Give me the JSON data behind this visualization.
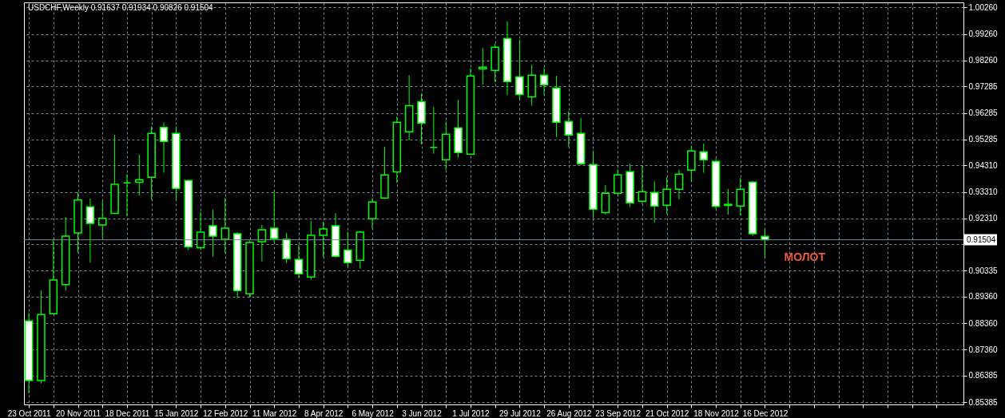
{
  "chart_data": {
    "type": "candlestick",
    "title": "USDCHF,Weekly 0.91637 0.91934 0.90826 0.91504",
    "x": [
      "2011-10-23",
      "2011-10-30",
      "2011-11-06",
      "2011-11-13",
      "2011-11-20",
      "2011-11-27",
      "2011-12-04",
      "2011-12-11",
      "2011-12-18",
      "2011-12-25",
      "2012-01-01",
      "2012-01-08",
      "2012-01-15",
      "2012-01-22",
      "2012-01-29",
      "2012-02-05",
      "2012-02-12",
      "2012-02-19",
      "2012-02-26",
      "2012-03-04",
      "2012-03-11",
      "2012-03-18",
      "2012-03-25",
      "2012-04-01",
      "2012-04-08",
      "2012-04-15",
      "2012-04-22",
      "2012-04-29",
      "2012-05-06",
      "2012-05-13",
      "2012-05-20",
      "2012-05-27",
      "2012-06-03",
      "2012-06-10",
      "2012-06-17",
      "2012-06-24",
      "2012-07-01",
      "2012-07-08",
      "2012-07-15",
      "2012-07-22",
      "2012-07-29",
      "2012-08-05",
      "2012-08-12",
      "2012-08-19",
      "2012-08-26",
      "2012-09-02",
      "2012-09-09",
      "2012-09-16",
      "2012-09-23",
      "2012-09-30",
      "2012-10-07",
      "2012-10-14",
      "2012-10-21",
      "2012-10-28",
      "2012-11-04",
      "2012-11-11",
      "2012-11-18",
      "2012-11-25",
      "2012-12-02",
      "2012-12-09",
      "2012-12-16"
    ],
    "ohlc": [
      [
        0.8845,
        0.8875,
        0.8572,
        0.862
      ],
      [
        0.862,
        0.896,
        0.8609,
        0.8869
      ],
      [
        0.8872,
        0.915,
        0.8869,
        0.8999
      ],
      [
        0.8982,
        0.9236,
        0.8958,
        0.9164
      ],
      [
        0.9176,
        0.933,
        0.9102,
        0.93
      ],
      [
        0.9275,
        0.9306,
        0.9064,
        0.9212
      ],
      [
        0.9206,
        0.9296,
        0.9158,
        0.9231
      ],
      [
        0.925,
        0.9546,
        0.9248,
        0.936
      ],
      [
        0.9365,
        0.9398,
        0.924,
        0.9365
      ],
      [
        0.9367,
        0.9471,
        0.9318,
        0.9377
      ],
      [
        0.9386,
        0.9578,
        0.9301,
        0.9551
      ],
      [
        0.9574,
        0.9593,
        0.9403,
        0.9521
      ],
      [
        0.9551,
        0.9578,
        0.9301,
        0.9344
      ],
      [
        0.9374,
        0.9377,
        0.9112,
        0.9124
      ],
      [
        0.9121,
        0.9255,
        0.9112,
        0.9179
      ],
      [
        0.9203,
        0.9264,
        0.9087,
        0.9164
      ],
      [
        0.9152,
        0.9308,
        0.91,
        0.9194
      ],
      [
        0.9173,
        0.9179,
        0.8929,
        0.8959
      ],
      [
        0.8947,
        0.9147,
        0.8935,
        0.914
      ],
      [
        0.9143,
        0.9207,
        0.9069,
        0.9188
      ],
      [
        0.9194,
        0.9335,
        0.914,
        0.9155
      ],
      [
        0.9152,
        0.9176,
        0.9063,
        0.9079
      ],
      [
        0.9076,
        0.9132,
        0.9007,
        0.9022
      ],
      [
        0.901,
        0.9222,
        0.9001,
        0.9167
      ],
      [
        0.9167,
        0.9218,
        0.9085,
        0.9191
      ],
      [
        0.9203,
        0.9251,
        0.9082,
        0.9088
      ],
      [
        0.9112,
        0.9179,
        0.905,
        0.9064
      ],
      [
        0.9073,
        0.9185,
        0.9042,
        0.9179
      ],
      [
        0.923,
        0.9308,
        0.9192,
        0.9293
      ],
      [
        0.9308,
        0.9501,
        0.9303,
        0.9395
      ],
      [
        0.9406,
        0.9615,
        0.9366,
        0.9593
      ],
      [
        0.9557,
        0.9771,
        0.9526,
        0.9656
      ],
      [
        0.9671,
        0.9701,
        0.951,
        0.959
      ],
      [
        0.9499,
        0.9651,
        0.9475,
        0.9499
      ],
      [
        0.9452,
        0.9595,
        0.9413,
        0.9548
      ],
      [
        0.9572,
        0.9678,
        0.946,
        0.9479
      ],
      [
        0.9473,
        0.9796,
        0.9473,
        0.9768
      ],
      [
        0.9795,
        0.9874,
        0.9736,
        0.9801
      ],
      [
        0.9789,
        0.9889,
        0.9745,
        0.9876
      ],
      [
        0.9909,
        0.9973,
        0.9695,
        0.9747
      ],
      [
        0.9765,
        0.9904,
        0.9681,
        0.9698
      ],
      [
        0.9689,
        0.9811,
        0.9655,
        0.9771
      ],
      [
        0.9771,
        0.9799,
        0.9695,
        0.9735
      ],
      [
        0.9722,
        0.9768,
        0.9538,
        0.9593
      ],
      [
        0.9596,
        0.9635,
        0.95,
        0.9545
      ],
      [
        0.9551,
        0.9609,
        0.9431,
        0.9437
      ],
      [
        0.9434,
        0.9487,
        0.9233,
        0.9266
      ],
      [
        0.9253,
        0.9357,
        0.9245,
        0.9326
      ],
      [
        0.9326,
        0.9416,
        0.9318,
        0.9395
      ],
      [
        0.9407,
        0.9437,
        0.9274,
        0.929
      ],
      [
        0.9296,
        0.9431,
        0.9285,
        0.9332
      ],
      [
        0.9329,
        0.9371,
        0.9215,
        0.9278
      ],
      [
        0.9281,
        0.9386,
        0.9248,
        0.9341
      ],
      [
        0.9341,
        0.9414,
        0.9303,
        0.9398
      ],
      [
        0.9413,
        0.9505,
        0.9373,
        0.9485
      ],
      [
        0.9482,
        0.9513,
        0.9403,
        0.9452
      ],
      [
        0.9446,
        0.9457,
        0.9266,
        0.9276
      ],
      [
        0.9284,
        0.9342,
        0.9245,
        0.928
      ],
      [
        0.9278,
        0.9384,
        0.9243,
        0.9341
      ],
      [
        0.9368,
        0.9371,
        0.9165,
        0.9173
      ],
      [
        0.91637,
        0.91934,
        0.90826,
        0.91504
      ]
    ],
    "color": "#00ff00",
    "colors": [
      "#ffffff",
      "#000000",
      "#000000",
      "#000000",
      "#000000",
      "#ffffff",
      "#000000",
      "#000000",
      "#00ff00",
      "#000000",
      "#000000",
      "#ffffff",
      "#ffffff",
      "#ffffff",
      "#000000",
      "#ffffff",
      "#000000",
      "#ffffff",
      "#000000",
      "#000000",
      "#ffffff",
      "#ffffff",
      "#ffffff",
      "#000000",
      "#000000",
      "#ffffff",
      "#ffffff",
      "#000000",
      "#000000",
      "#000000",
      "#000000",
      "#000000",
      "#ffffff",
      "#00ff00",
      "#000000",
      "#ffffff",
      "#000000",
      "#000000",
      "#000000",
      "#ffffff",
      "#ffffff",
      "#000000",
      "#ffffff",
      "#ffffff",
      "#ffffff",
      "#ffffff",
      "#ffffff",
      "#000000",
      "#000000",
      "#ffffff",
      "#000000",
      "#ffffff",
      "#000000",
      "#000000",
      "#000000",
      "#ffffff",
      "#ffffff",
      "#ffffff",
      "#000000",
      "#ffffff",
      "#ffffff"
    ],
    "xlim": [
      "2011-10-22T12:00",
      "2013-04-06"
    ],
    "xticks": [
      {
        "value": "2011-10-23",
        "label": "23 Oct 2011"
      },
      {
        "value": "2011-11-06",
        "label": null
      },
      {
        "value": "2011-11-20",
        "label": "20 Nov 2011"
      },
      {
        "value": "2011-12-04",
        "label": null
      },
      {
        "value": "2011-12-18",
        "label": "18 Dec 2011"
      },
      {
        "value": "2012-01-01",
        "label": null
      },
      {
        "value": "2012-01-15",
        "label": "15 Jan 2012"
      },
      {
        "value": "2012-01-29",
        "label": null
      },
      {
        "value": "2012-02-12",
        "label": "12 Feb 2012"
      },
      {
        "value": "2012-02-26",
        "label": null
      },
      {
        "value": "2012-03-11",
        "label": "11 Mar 2012"
      },
      {
        "value": "2012-03-25",
        "label": null
      },
      {
        "value": "2012-04-08",
        "label": "8 Apr 2012"
      },
      {
        "value": "2012-04-22",
        "label": null
      },
      {
        "value": "2012-05-06",
        "label": "6 May 2012"
      },
      {
        "value": "2012-05-20",
        "label": null
      },
      {
        "value": "2012-06-03",
        "label": "3 Jun 2012"
      },
      {
        "value": "2012-06-17",
        "label": null
      },
      {
        "value": "2012-07-01",
        "label": "1 Jul 2012"
      },
      {
        "value": "2012-07-15",
        "label": null
      },
      {
        "value": "2012-07-29",
        "label": "29 Jul 2012"
      },
      {
        "value": "2012-08-12",
        "label": null
      },
      {
        "value": "2012-08-26",
        "label": "26 Aug 2012"
      },
      {
        "value": "2012-09-09",
        "label": null
      },
      {
        "value": "2012-09-23",
        "label": "23 Sep 2012"
      },
      {
        "value": "2012-10-07",
        "label": null
      },
      {
        "value": "2012-10-21",
        "label": "21 Oct 2012"
      },
      {
        "value": "2012-11-04",
        "label": null
      },
      {
        "value": "2012-11-18",
        "label": "18 Nov 2012"
      },
      {
        "value": "2012-12-02",
        "label": null
      },
      {
        "value": "2012-12-16",
        "label": "16 Dec 2012"
      },
      {
        "value": "2012-12-30",
        "label": null
      },
      {
        "value": "2013-01-13",
        "label": null
      },
      {
        "value": "2013-01-27",
        "label": null
      },
      {
        "value": "2013-02-10",
        "label": null
      },
      {
        "value": "2013-02-24",
        "label": null
      },
      {
        "value": "2013-03-10",
        "label": null
      },
      {
        "value": "2013-03-24",
        "label": null
      }
    ],
    "ylim": [
      0.853,
      1.0045
    ],
    "yticks": [
      {
        "value": 1.0026,
        "label": "1.00260"
      },
      {
        "value": 0.9926,
        "label": "0.99260"
      },
      {
        "value": 0.9826,
        "label": "0.98260"
      },
      0.97285,
      0.96285,
      0.95285,
      {
        "value": 0.9431,
        "label": "0.94310"
      },
      {
        "value": 0.9331,
        "label": "0.93310"
      },
      {
        "value": 0.9231,
        "label": "0.92310"
      },
      {
        "value": 0.91335,
        "label": null
      },
      0.90335,
      {
        "value": 0.8936,
        "label": "0.89360"
      },
      {
        "value": 0.8836,
        "label": "0.88360"
      },
      {
        "value": 0.8736,
        "label": "0.87360"
      },
      0.86385,
      0.85385
    ],
    "grid": true,
    "ref_lines": [
      {
        "axis": "y",
        "value": 0.91504,
        "label": "0.91504",
        "color": "#778899"
      }
    ],
    "annotations": [
      {
        "text": "МОЛОТ",
        "x": "2012-12-16",
        "y": 0.90826
      }
    ]
  }
}
